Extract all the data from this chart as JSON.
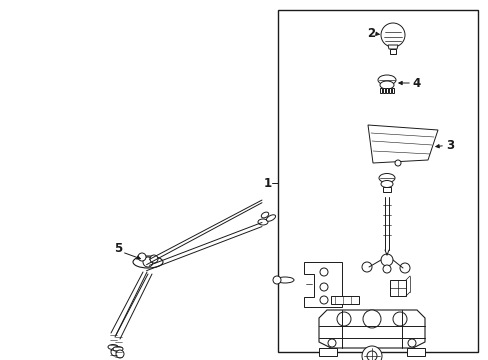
{
  "bg_color": "#ffffff",
  "lc": "#1a1a1a",
  "lw": 0.7,
  "fig_width": 4.89,
  "fig_height": 3.6,
  "dpi": 100,
  "labels": {
    "1": "1",
    "2": "2",
    "3": "3",
    "4": "4",
    "5": "5"
  },
  "fs": 8.5
}
